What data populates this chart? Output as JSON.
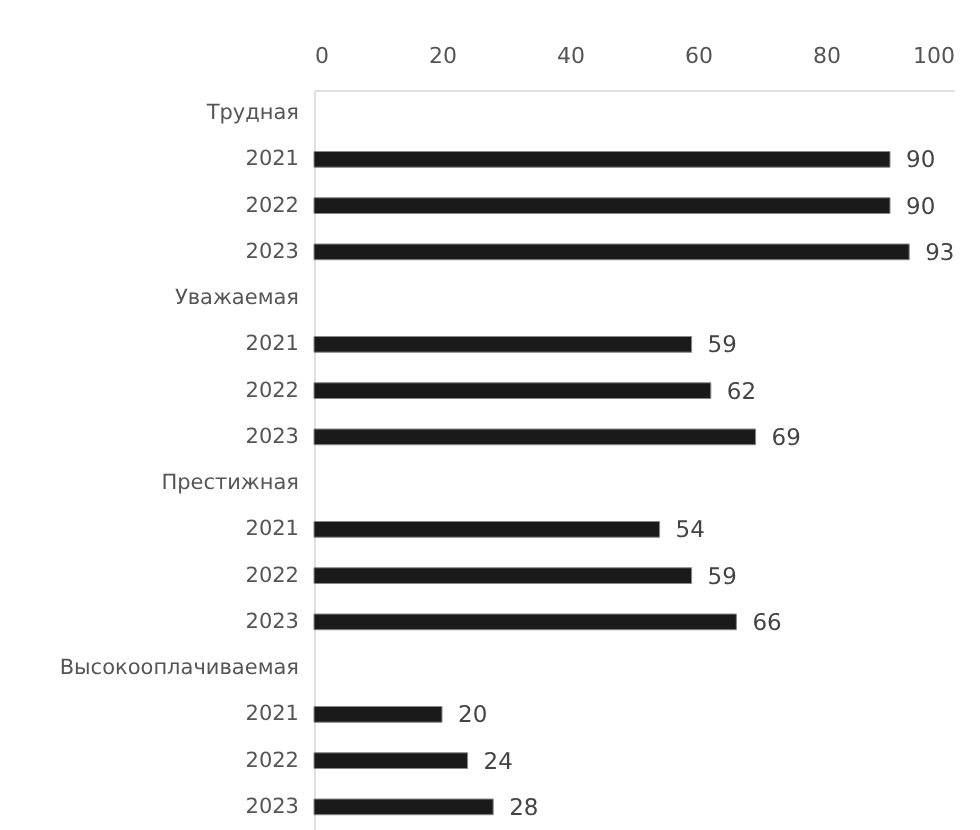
{
  "chart_data": {
    "type": "bar",
    "orientation": "horizontal",
    "categories": [
      "Трудная",
      "2021",
      "2022",
      "2023",
      "Уважаемая",
      "2021",
      "2022",
      "2023",
      "Престижная",
      "2021",
      "2022",
      "2023",
      "Высокооплачиваемая",
      "2021",
      "2022",
      "2023"
    ],
    "values": [
      null,
      90,
      90,
      93,
      null,
      59,
      62,
      69,
      null,
      54,
      59,
      66,
      null,
      20,
      24,
      28
    ],
    "color": "#1a1a1a",
    "xlim": [
      0,
      100
    ],
    "xticks": [
      0,
      20,
      40,
      60,
      80,
      100
    ],
    "data_labels": true
  }
}
